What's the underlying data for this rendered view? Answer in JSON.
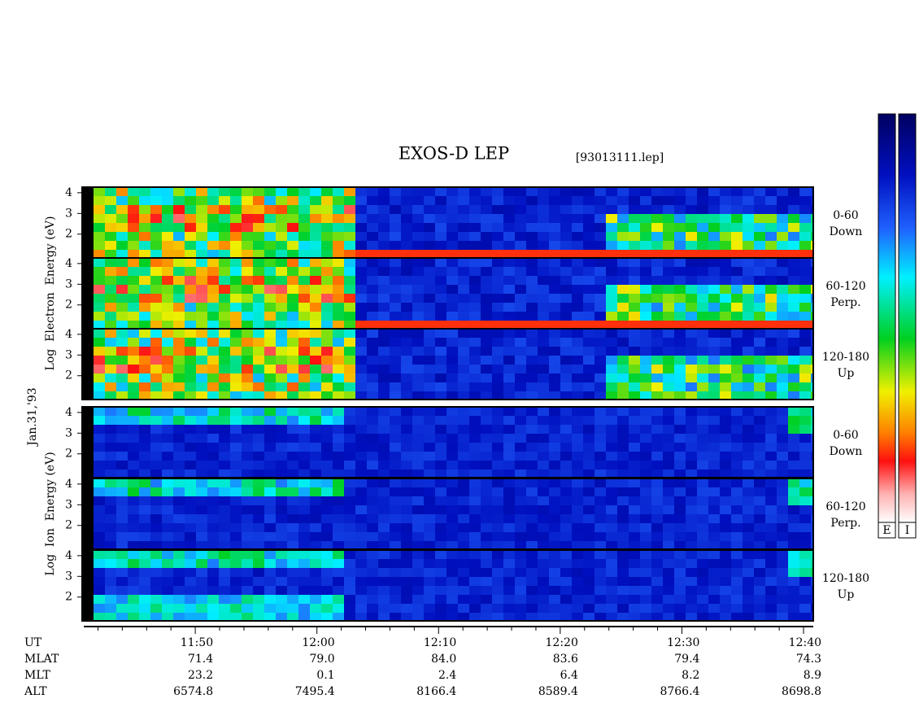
{
  "title": "EXOS-D LEP",
  "file": "[93013111.lep]",
  "date": "Jan.31,'93",
  "groups": [
    {
      "label": "Log  Electron  Energy (eV)",
      "panels": [
        {
          "angle": "0-60",
          "direction": "Down"
        },
        {
          "angle": "60-120",
          "direction": "Perp."
        },
        {
          "angle": "120-180",
          "direction": "Up"
        }
      ]
    },
    {
      "label": "Log  Ion  Energy (eV)",
      "panels": [
        {
          "angle": "0-60",
          "direction": "Down"
        },
        {
          "angle": "60-120",
          "direction": "Perp."
        },
        {
          "angle": "120-180",
          "direction": "Up"
        }
      ]
    }
  ],
  "energy_axis": {
    "lim": [
      0.85,
      4.27
    ],
    "ticks": [
      2,
      3,
      4
    ]
  },
  "time_axis": {
    "lim": [
      700.7,
      760.8
    ],
    "ticks": [
      {
        "value": 710,
        "label": "11:50"
      },
      {
        "value": 720,
        "label": "12:00"
      },
      {
        "value": 730,
        "label": "12:10"
      },
      {
        "value": 740,
        "label": "12:20"
      },
      {
        "value": 750,
        "label": "12:30"
      },
      {
        "value": 760,
        "label": "12:40"
      }
    ],
    "minor_ticks": [
      702,
      704,
      706,
      708,
      712,
      714,
      716,
      718,
      722,
      724,
      726,
      728,
      732,
      734,
      736,
      738,
      742,
      744,
      746,
      748,
      752,
      754,
      756,
      758
    ]
  },
  "rows": [
    {
      "label": "UT"
    },
    {
      "label": "MLAT",
      "values": [
        "71.4",
        "79.0",
        "84.0",
        "83.6",
        "79.4",
        "74.3"
      ]
    },
    {
      "label": "MLT",
      "values": [
        "23.2",
        "0.1",
        "2.4",
        "6.4",
        "8.2",
        "8.9"
      ]
    },
    {
      "label": "ALT",
      "values": [
        "6574.8",
        "7495.4",
        "8166.4",
        "8589.4",
        "8766.4",
        "8698.8"
      ]
    }
  ],
  "colorbars": [
    {
      "label": "E"
    },
    {
      "label": "I"
    }
  ]
}
